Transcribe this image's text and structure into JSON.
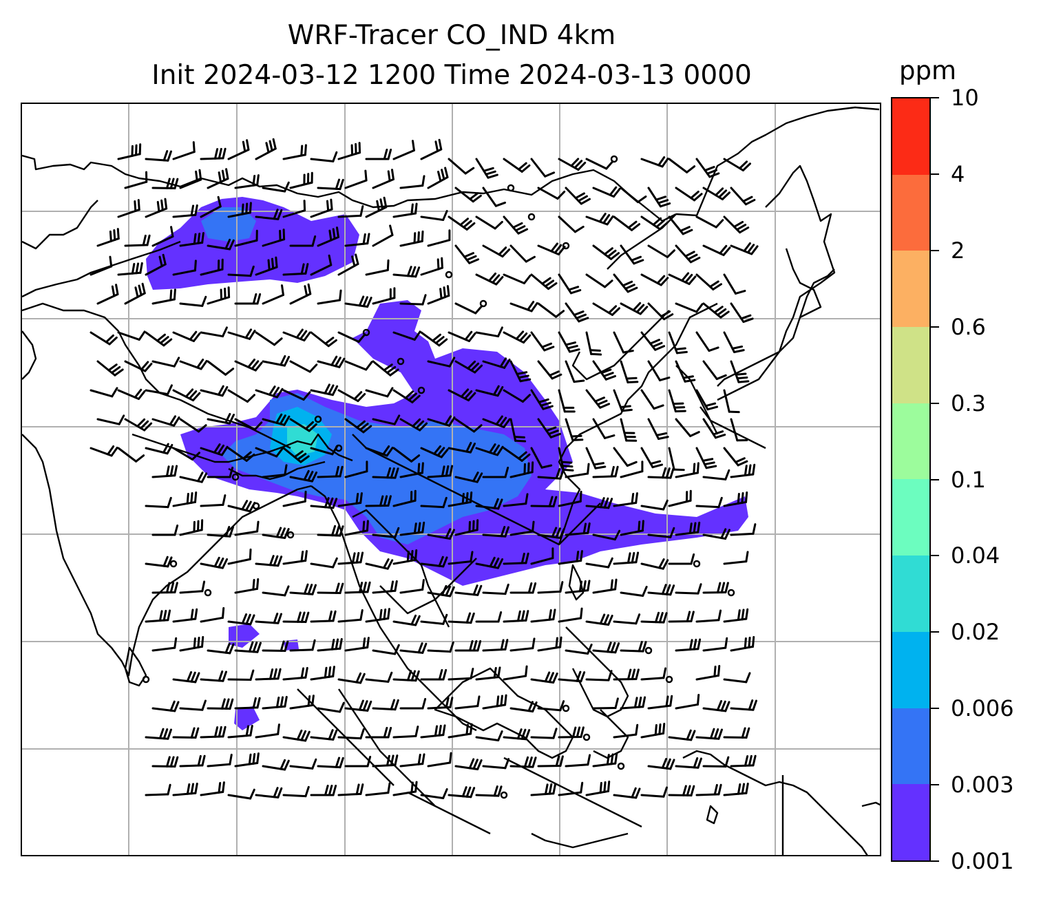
{
  "map": {
    "title_line1": "WRF-Tracer CO_IND 4km",
    "title_line2": "Init 2024-03-12 1200 Time 2024-03-13 0000",
    "field": "CO_IND tracer concentration",
    "overlay": "wind barbs",
    "graticule": "on",
    "background_color": "#ffffff",
    "coastline_color": "#000000",
    "grid_color": "#b0b0b0"
  },
  "colorbar": {
    "unit": "ppm",
    "levels": [
      "0.001",
      "0.003",
      "0.006",
      "0.02",
      "0.04",
      "0.1",
      "0.3",
      "0.6",
      "2",
      "4",
      "10"
    ],
    "colors": [
      "#6431ff",
      "#3474f5",
      "#00b2ef",
      "#30dcd4",
      "#6cfdbf",
      "#9cfc9c",
      "#cfe287",
      "#fcb062",
      "#fc6c3c",
      "#fc2b16"
    ]
  }
}
